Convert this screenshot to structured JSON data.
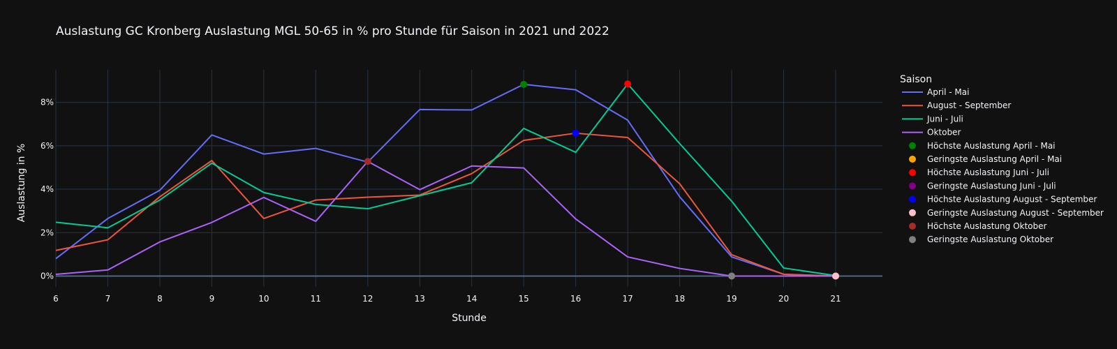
{
  "chart_data": {
    "type": "line",
    "title": "Auslastung GC Kronberg Auslastung MGL 50-65 in % pro Stunde für Saison in 2021 und 2022",
    "xlabel": "Stunde",
    "ylabel": "Auslastung in %",
    "x": [
      6,
      7,
      8,
      9,
      10,
      11,
      12,
      13,
      14,
      15,
      16,
      17,
      18,
      19,
      20,
      21
    ],
    "xlim": [
      6,
      21.9
    ],
    "ylim": [
      -0.5,
      9.5
    ],
    "x_ticks": [
      "6",
      "7",
      "8",
      "9",
      "10",
      "11",
      "12",
      "13",
      "14",
      "15",
      "16",
      "17",
      "18",
      "19",
      "20",
      "21"
    ],
    "y_ticks": [
      0,
      2,
      4,
      6,
      8
    ],
    "y_tick_labels": [
      "0%",
      "2%",
      "4%",
      "6%",
      "8%"
    ],
    "grid": true,
    "legend_title": "Saison",
    "legend_position": "right",
    "series": [
      {
        "name": "April - Mai",
        "color": "#636efa",
        "values": [
          0.8,
          2.65,
          3.95,
          6.5,
          5.62,
          5.88,
          5.25,
          7.67,
          7.65,
          8.83,
          8.58,
          7.18,
          3.65,
          0.88,
          0.08,
          0.0
        ]
      },
      {
        "name": "August - September",
        "color": "#ef553b",
        "values": [
          1.18,
          1.67,
          3.65,
          5.32,
          2.65,
          3.5,
          3.63,
          3.73,
          4.72,
          6.25,
          6.58,
          6.38,
          4.25,
          0.98,
          0.08,
          0.0
        ]
      },
      {
        "name": "Juni - Juli",
        "color": "#00cc96",
        "values": [
          2.48,
          2.22,
          3.5,
          5.2,
          3.85,
          3.3,
          3.1,
          3.7,
          4.3,
          6.8,
          5.7,
          8.85,
          6.1,
          3.45,
          0.37,
          0.02
        ]
      },
      {
        "name": "Oktober",
        "color": "#ab63fa",
        "values": [
          0.08,
          0.28,
          1.57,
          2.47,
          3.62,
          2.52,
          5.28,
          3.98,
          5.07,
          4.98,
          2.63,
          0.88,
          0.35,
          0.0,
          0.0,
          0.0
        ]
      }
    ],
    "markers": [
      {
        "name": "Höchste Auslastung April - Mai",
        "color": "#008000",
        "x": 15,
        "y": 8.83
      },
      {
        "name": "Geringste Auslastung April - Mai",
        "color": "#ffa500",
        "x": 21,
        "y": 0.0
      },
      {
        "name": "Höchste Auslastung Juni - Juli",
        "color": "#ff0000",
        "x": 17,
        "y": 8.85
      },
      {
        "name": "Geringste Auslastung Juni - Juli",
        "color": "#800080",
        "x": 21,
        "y": 0.0
      },
      {
        "name": "Höchste Auslastung August - September",
        "color": "#0000ff",
        "x": 16,
        "y": 6.58
      },
      {
        "name": "Geringste Auslastung August - September",
        "color": "#ffc0cb",
        "x": 21,
        "y": 0.0
      },
      {
        "name": "Höchste Auslastung Oktober",
        "color": "#a52a2a",
        "x": 12,
        "y": 5.28
      },
      {
        "name": "Geringste Auslastung Oktober",
        "color": "#808080",
        "x": 19,
        "y": 0.0
      }
    ]
  }
}
